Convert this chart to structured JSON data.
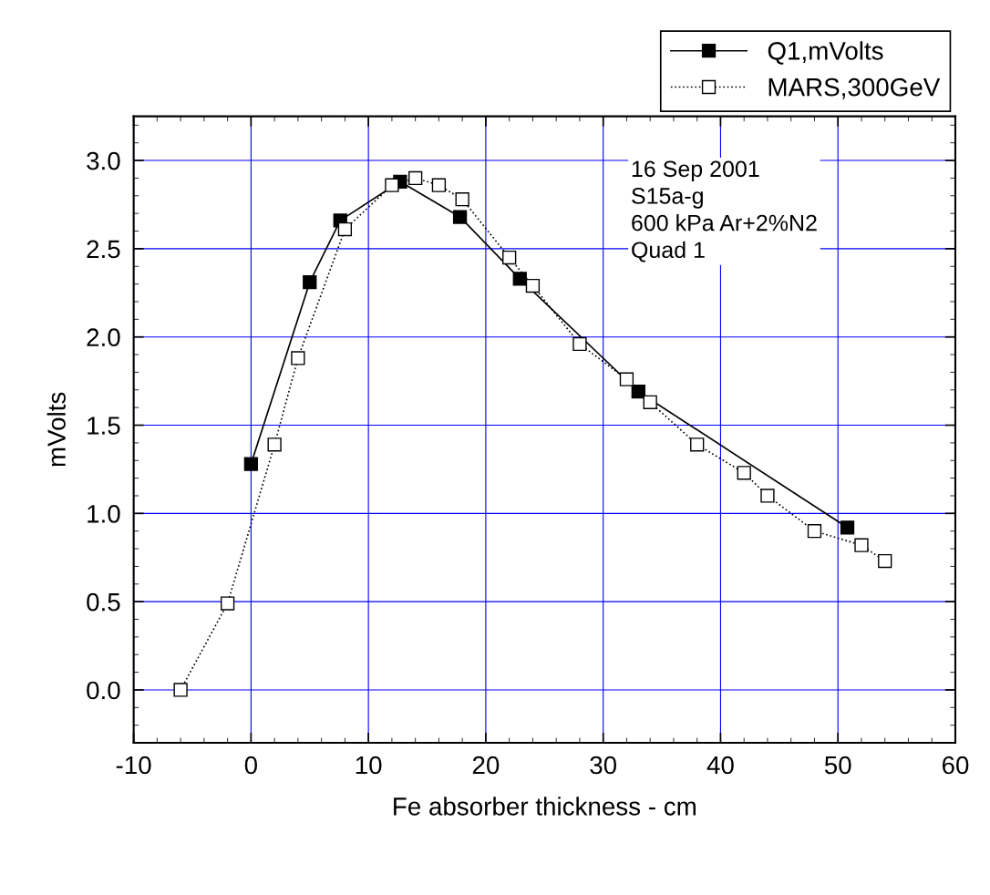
{
  "chart_data": {
    "type": "line",
    "xlabel": "Fe absorber thickness - cm",
    "ylabel": "mVolts",
    "annotations": [
      "16 Sep 2001\nS15a-g\n600 kPa Ar+2%N2\nQuad 1"
    ],
    "xlim": [
      -10,
      60
    ],
    "xticks": [
      -10,
      0,
      10,
      20,
      30,
      40,
      50,
      60
    ],
    "ylim": [
      -0.3,
      3.25
    ],
    "yticks": [
      {
        "value": 0,
        "label": "0.0"
      },
      {
        "value": 0.5,
        "label": "0.5"
      },
      {
        "value": 1,
        "label": "1.0"
      },
      {
        "value": 1.5,
        "label": "1.5"
      },
      {
        "value": 2,
        "label": "2.0"
      },
      {
        "value": 2.5,
        "label": "2.5"
      },
      {
        "value": 3,
        "label": "3.0"
      }
    ],
    "grid": true,
    "legend": "top right",
    "marker": "square",
    "series": [
      {
        "name": "Q1,mVolts",
        "color": "#000000",
        "line_style": "solid",
        "x": [
          0,
          5,
          7.6,
          12.7,
          17.8,
          22.9,
          33,
          50.8
        ],
        "values": [
          1.28,
          2.31,
          2.66,
          2.88,
          2.68,
          2.33,
          1.69,
          0.92
        ]
      },
      {
        "name": "MARS,300GeV",
        "color": "#000000",
        "line_style": "dotted",
        "x": [
          -6,
          -2,
          2,
          4,
          8,
          12,
          14,
          16,
          18,
          22,
          24,
          28,
          32,
          34,
          38,
          42,
          44,
          48,
          52,
          54
        ],
        "values": [
          0,
          0.49,
          1.39,
          1.88,
          2.61,
          2.86,
          2.9,
          2.86,
          2.78,
          2.45,
          2.29,
          1.96,
          1.76,
          1.63,
          1.39,
          1.23,
          1.1,
          0.9,
          0.82,
          0.73
        ]
      }
    ]
  }
}
